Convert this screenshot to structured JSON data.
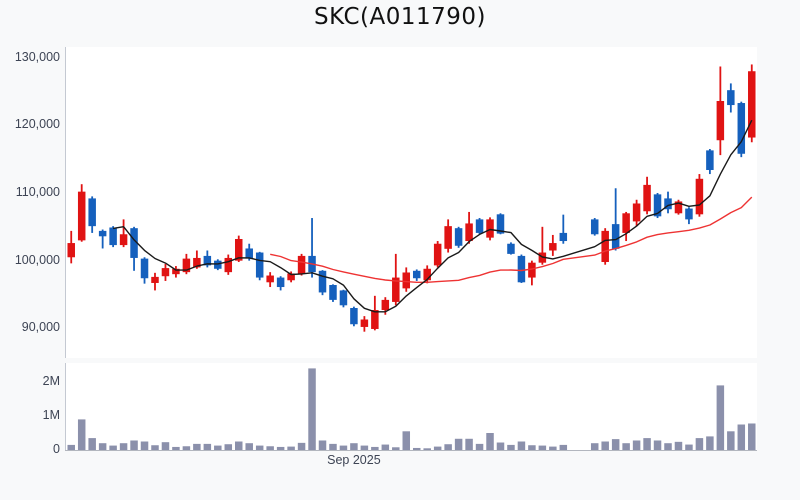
{
  "title": "SKC(A011790)",
  "price_axis": {
    "labels": [
      "130,000",
      "120,000",
      "110,000",
      "100,000",
      "90,000"
    ]
  },
  "volume_axis": {
    "labels": [
      "2M",
      "1M",
      "0"
    ]
  },
  "x_axis": {
    "label": "Sep 2025"
  },
  "chart_data": {
    "type": "candlestick",
    "title": "SKC(A011790)",
    "price_axis_values": [
      130000,
      120000,
      110000,
      100000,
      90000
    ],
    "volume_axis_values": [
      2000000,
      1000000,
      0
    ],
    "x_tick": {
      "label": "Sep 2025",
      "slot": 27
    },
    "ma_windows": {
      "short": 5,
      "long": 20
    },
    "colors": {
      "up": "#e01313",
      "down": "#1560bd",
      "ma_short": "#1a1a1a",
      "ma_long": "#ee3333",
      "volume": "#8b90ab",
      "axis": "#c4c9d2",
      "baseline": "#b2b6be",
      "panel": "#ffffff",
      "page_bg": "#f8f9fa",
      "label": "#3d4454"
    },
    "candles_format": [
      "open",
      "high",
      "low",
      "close",
      "volume"
    ],
    "candles": [
      [
        100500,
        104400,
        99600,
        102600,
        150000
      ],
      [
        103000,
        111300,
        102800,
        110200,
        900000
      ],
      [
        109200,
        109500,
        104100,
        105100,
        350000
      ],
      [
        104400,
        104600,
        101800,
        103600,
        200000
      ],
      [
        104900,
        105100,
        102000,
        102300,
        130000
      ],
      [
        102300,
        106100,
        102000,
        103900,
        200000
      ],
      [
        104800,
        105000,
        98500,
        100400,
        280000
      ],
      [
        100300,
        100500,
        96600,
        97400,
        250000
      ],
      [
        96700,
        98200,
        95600,
        97600,
        140000
      ],
      [
        97700,
        99500,
        97000,
        98900,
        230000
      ],
      [
        98000,
        99200,
        97500,
        98800,
        90000
      ],
      [
        98300,
        101000,
        98000,
        100300,
        110000
      ],
      [
        99000,
        101500,
        98800,
        100400,
        180000
      ],
      [
        100700,
        101500,
        99000,
        99300,
        180000
      ],
      [
        100000,
        100200,
        98600,
        98800,
        130000
      ],
      [
        98300,
        100900,
        97900,
        100400,
        170000
      ],
      [
        100000,
        103700,
        99800,
        103200,
        250000
      ],
      [
        101800,
        102500,
        100000,
        100300,
        200000
      ],
      [
        101200,
        101300,
        97100,
        97500,
        130000
      ],
      [
        96800,
        98300,
        96100,
        97800,
        110000
      ],
      [
        97500,
        97700,
        95600,
        96100,
        90000
      ],
      [
        97100,
        98400,
        96800,
        98100,
        100000
      ],
      [
        98100,
        101000,
        97800,
        100700,
        210000
      ],
      [
        100700,
        106300,
        97500,
        98300,
        2400000
      ],
      [
        98500,
        98600,
        94900,
        95300,
        280000
      ],
      [
        96400,
        96500,
        93900,
        94200,
        180000
      ],
      [
        95600,
        95700,
        93100,
        93400,
        130000
      ],
      [
        93000,
        93200,
        90300,
        90600,
        200000
      ],
      [
        90200,
        91800,
        89500,
        91300,
        130000
      ],
      [
        89900,
        94800,
        89700,
        92700,
        90000
      ],
      [
        92700,
        94600,
        92000,
        94200,
        160000
      ],
      [
        93900,
        101000,
        93400,
        97500,
        80000
      ],
      [
        95900,
        99000,
        95400,
        98250,
        550000
      ],
      [
        98500,
        98700,
        97000,
        97400,
        60000
      ],
      [
        97100,
        99300,
        96650,
        98800,
        50000
      ],
      [
        99300,
        102900,
        99000,
        102500,
        100000
      ],
      [
        101750,
        106100,
        101200,
        105100,
        170000
      ],
      [
        104800,
        105000,
        101900,
        102200,
        330000
      ],
      [
        102900,
        107200,
        102500,
        105500,
        330000
      ],
      [
        106100,
        106300,
        103900,
        104100,
        180000
      ],
      [
        103400,
        106400,
        103000,
        106100,
        500000
      ],
      [
        106850,
        107000,
        103900,
        104000,
        220000
      ],
      [
        102500,
        102700,
        100900,
        101000,
        150000
      ],
      [
        100700,
        100900,
        96700,
        96800,
        250000
      ],
      [
        97500,
        100000,
        96350,
        99700,
        140000
      ],
      [
        99700,
        105000,
        99400,
        101200,
        130000
      ],
      [
        101500,
        103800,
        100700,
        102600,
        100000
      ],
      [
        104100,
        106800,
        102500,
        102900,
        150000
      ],
      null,
      null,
      [
        106100,
        106300,
        103700,
        103900,
        200000
      ],
      [
        99800,
        104800,
        99400,
        104400,
        250000
      ],
      [
        105400,
        110700,
        101500,
        101750,
        320000
      ],
      [
        104100,
        107200,
        102900,
        107000,
        200000
      ],
      [
        105800,
        109000,
        105100,
        108450,
        280000
      ],
      [
        107300,
        112400,
        106850,
        111200,
        350000
      ],
      [
        109800,
        110000,
        106300,
        106550,
        280000
      ],
      [
        109200,
        110200,
        107000,
        107600,
        200000
      ],
      [
        107000,
        109000,
        106800,
        108750,
        240000
      ],
      [
        107700,
        107900,
        105400,
        106100,
        160000
      ],
      [
        106850,
        112800,
        106500,
        112100,
        350000
      ],
      [
        116300,
        116500,
        112800,
        113400,
        400000
      ],
      [
        117800,
        128700,
        115600,
        123600,
        1900000
      ],
      [
        125200,
        126200,
        121900,
        123000,
        550000
      ],
      [
        123300,
        123500,
        115300,
        115800,
        750000
      ],
      [
        118200,
        129000,
        117500,
        128000,
        780000
      ]
    ]
  }
}
